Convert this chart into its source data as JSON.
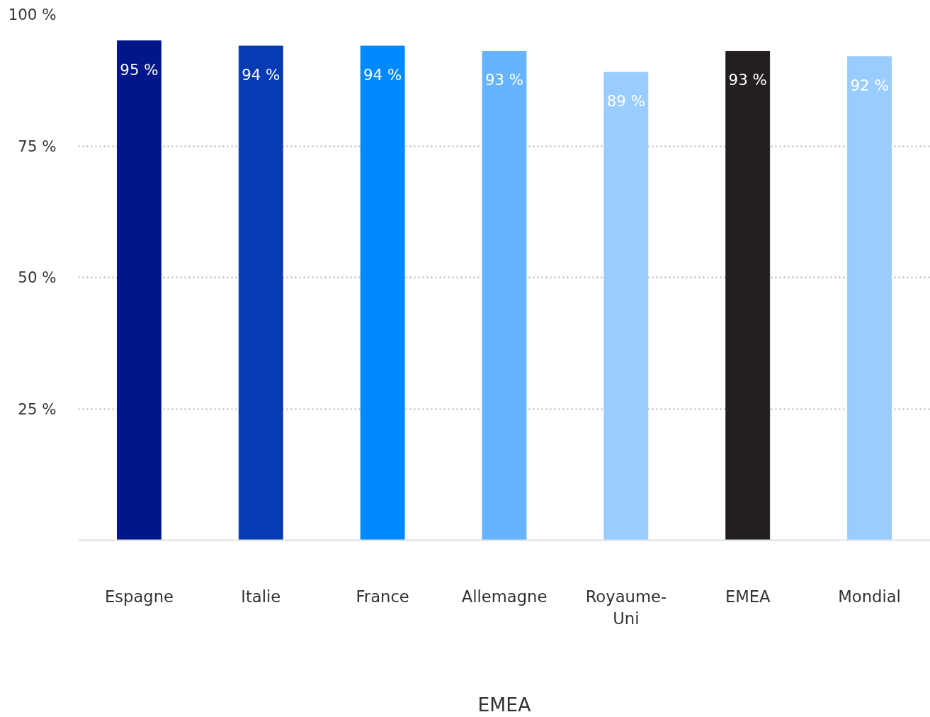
{
  "chart_data": {
    "type": "bar",
    "xlabel": "EMEA",
    "categories": [
      "Espagne",
      "Italie",
      "France",
      "Allemagne",
      "Royaume-Uni",
      "EMEA",
      "Mondial"
    ],
    "values": [
      95,
      94,
      94,
      93,
      89,
      93,
      92
    ],
    "colors": [
      "#001689",
      "#063bb3",
      "#0088ff",
      "#66b3ff",
      "#99ccff",
      "#231f20",
      "#99ccff"
    ],
    "value_labels": [
      "95 %",
      "94 %",
      "94 %",
      "93 %",
      "89 %",
      "93 %",
      "92 %"
    ],
    "ylim": [
      0,
      100
    ],
    "yticks": [
      {
        "value": 25,
        "label": "25 %"
      },
      {
        "value": 50,
        "label": "50 %"
      },
      {
        "value": 75,
        "label": "75 %"
      },
      {
        "value": 100,
        "label": "100 %"
      }
    ],
    "grid": "y"
  }
}
